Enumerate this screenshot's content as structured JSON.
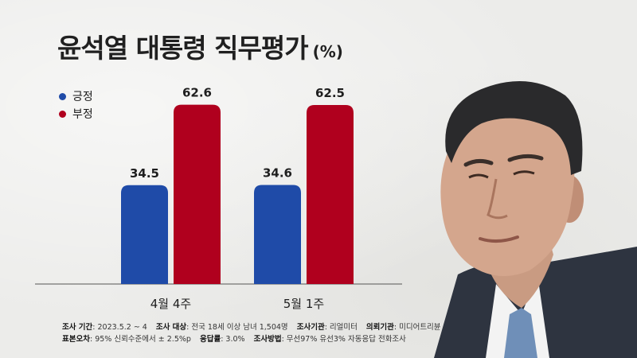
{
  "title": "윤석열 대통령 직무평가",
  "title_unit": "(%)",
  "chart_data": {
    "type": "bar",
    "categories": [
      "4월 4주",
      "5월 1주"
    ],
    "series": [
      {
        "name": "긍정",
        "values": [
          34.5,
          34.6
        ],
        "color": "#1f4ba8"
      },
      {
        "name": "부정",
        "values": [
          62.6,
          62.5
        ],
        "color": "#b0001e"
      }
    ],
    "ylim": [
      0,
      70
    ],
    "grid": false,
    "legend": "top-left"
  },
  "footer": {
    "line1": [
      {
        "key": "조사 기간",
        "value": ": 2023.5.2 ~ 4"
      },
      {
        "key": "조사 대상",
        "value": ": 전국 18세 이상 남녀 1,504명"
      },
      {
        "key": "조사기관",
        "value": ": 리얼미터"
      },
      {
        "key": "의뢰기관",
        "value": ": 미디어트리뷴"
      }
    ],
    "line2": [
      {
        "key": "표본오차",
        "value": ": 95% 신뢰수준에서 ± 2.5%p"
      },
      {
        "key": "응답률",
        "value": ": 3.0%"
      },
      {
        "key": "조사방법",
        "value": ": 무선97% 유선3% 자동응답 전화조사"
      }
    ]
  }
}
